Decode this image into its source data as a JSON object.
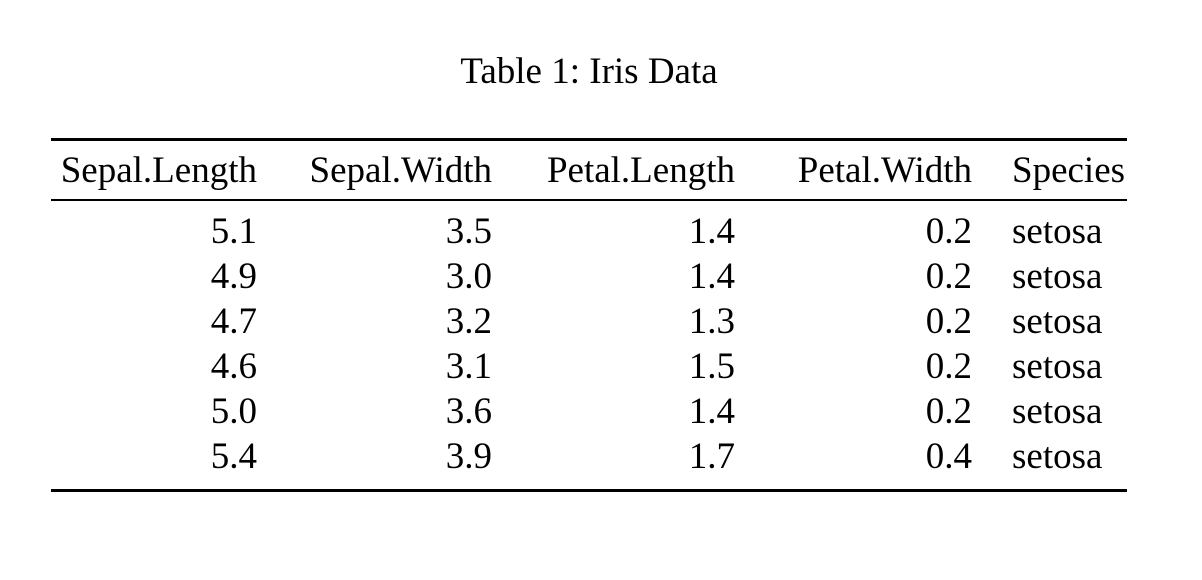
{
  "caption": "Table 1: Iris Data",
  "table": {
    "columns": [
      "Sepal.Length",
      "Sepal.Width",
      "Petal.Length",
      "Petal.Width",
      "Species"
    ],
    "column_alignments": [
      "right",
      "right",
      "right",
      "right",
      "left"
    ],
    "rows": [
      [
        "5.1",
        "3.5",
        "1.4",
        "0.2",
        "setosa"
      ],
      [
        "4.9",
        "3.0",
        "1.4",
        "0.2",
        "setosa"
      ],
      [
        "4.7",
        "3.2",
        "1.3",
        "0.2",
        "setosa"
      ],
      [
        "4.6",
        "3.1",
        "1.5",
        "0.2",
        "setosa"
      ],
      [
        "5.0",
        "3.6",
        "1.4",
        "0.2",
        "setosa"
      ],
      [
        "5.4",
        "3.9",
        "1.7",
        "0.4",
        "setosa"
      ]
    ]
  },
  "colors": {
    "text": "#000000",
    "background": "#ffffff",
    "rule": "#000000"
  }
}
